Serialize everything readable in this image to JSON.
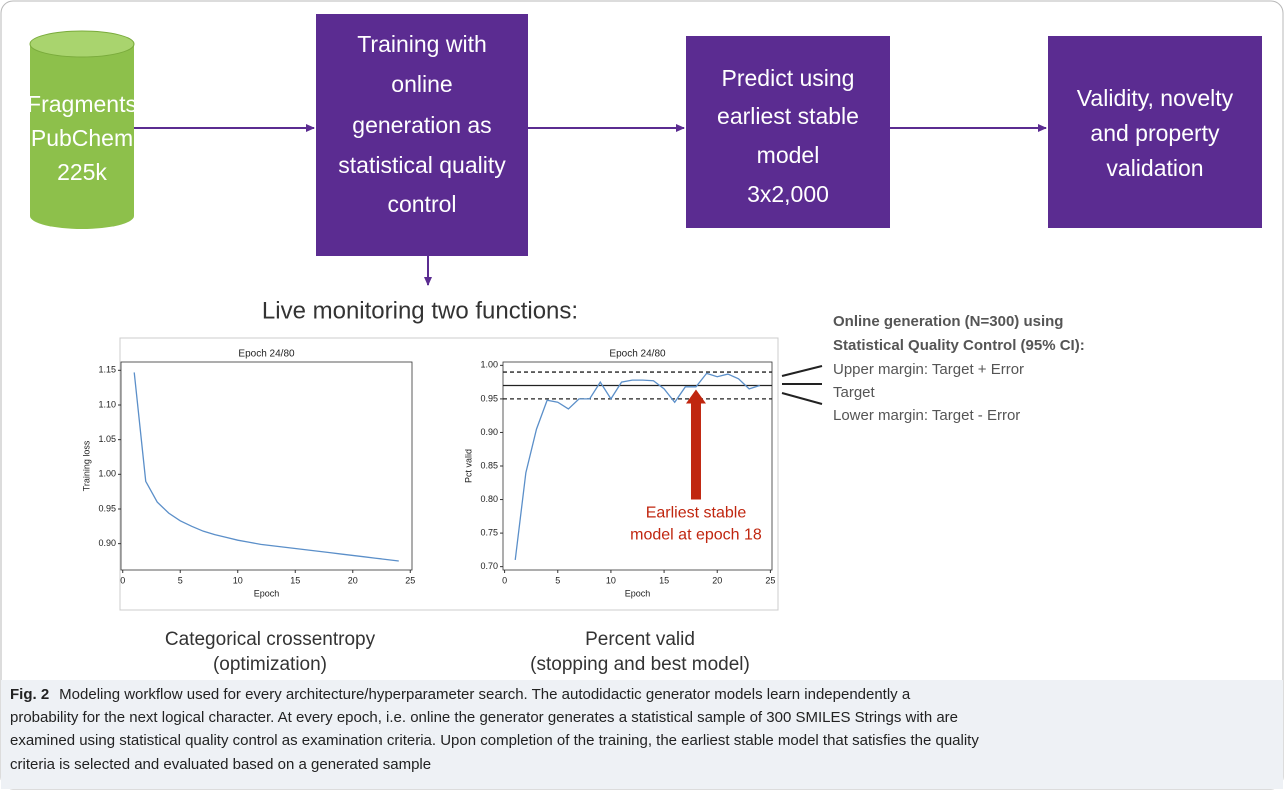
{
  "diagram": {
    "source": {
      "lines": [
        "Fragments",
        "PubChem",
        "225k"
      ]
    },
    "steps": [
      {
        "lines": [
          "Training with",
          "online",
          "generation as",
          "statistical quality",
          "control"
        ]
      },
      {
        "lines": [
          "Predict using",
          "earliest stable",
          "model",
          "3x2,000"
        ]
      },
      {
        "lines": [
          "Validity, novelty",
          "and property",
          "validation"
        ]
      }
    ]
  },
  "monitor_title": "Live monitoring two functions:",
  "chart_captions": [
    {
      "lines": [
        "Categorical crossentropy",
        "(optimization)"
      ]
    },
    {
      "lines": [
        "Percent valid",
        "(stopping and best model)"
      ]
    }
  ],
  "notes": {
    "heading": [
      "Online generation (N=300) using",
      "Statistical Quality Control (95% CI):"
    ],
    "items": [
      "Upper margin: Target + Error",
      "Target",
      "Lower margin: Target - Error"
    ]
  },
  "chart_data": [
    {
      "type": "line",
      "title": "Epoch 24/80",
      "x_label": "Epoch",
      "y_label": "Training loss",
      "x": [
        1,
        2,
        3,
        4,
        5,
        6,
        7,
        8,
        9,
        10,
        11,
        12,
        13,
        14,
        15,
        16,
        17,
        18,
        19,
        20,
        21,
        22,
        23,
        24
      ],
      "series": [
        {
          "color": "#5b8fc9",
          "values": [
            1.147,
            0.99,
            0.96,
            0.944,
            0.933,
            0.925,
            0.918,
            0.913,
            0.909,
            0.905,
            0.902,
            0.899,
            0.897,
            0.895,
            0.893,
            0.891,
            0.889,
            0.887,
            0.885,
            0.883,
            0.881,
            0.879,
            0.877,
            0.875
          ]
        }
      ],
      "xlim": [
        -0.15,
        25.15
      ],
      "xticks": [
        0,
        5,
        10,
        15,
        20,
        25
      ],
      "ylim": [
        0.862,
        1.162
      ],
      "yticks": [
        {
          "value": 0.9,
          "label": "0.90"
        },
        0.95,
        {
          "value": 1.0,
          "label": "1.00"
        },
        1.05,
        {
          "value": 1.1,
          "label": "1.10"
        },
        1.15
      ]
    },
    {
      "type": "line",
      "title": "Epoch 24/80",
      "x_label": "Epoch",
      "y_label": "Pct valid",
      "x": [
        1,
        2,
        3,
        4,
        5,
        6,
        7,
        8,
        9,
        10,
        11,
        12,
        13,
        14,
        15,
        16,
        17,
        18,
        19,
        20,
        21,
        22,
        23,
        24
      ],
      "series": [
        {
          "color": "#5b8fc9",
          "values": [
            0.71,
            0.84,
            0.905,
            0.948,
            0.945,
            0.935,
            0.95,
            0.95,
            0.975,
            0.95,
            0.975,
            0.978,
            0.978,
            0.977,
            0.965,
            0.945,
            0.968,
            0.968,
            0.988,
            0.983,
            0.987,
            0.98,
            0.965,
            0.97
          ]
        }
      ],
      "xlim": [
        -0.15,
        25.15
      ],
      "xticks": [
        0,
        5,
        10,
        15,
        20,
        25
      ],
      "ylim": [
        0.695,
        1.005
      ],
      "yticks": [
        {
          "value": 0.7,
          "label": "0.70"
        },
        0.75,
        {
          "value": 0.8,
          "label": "0.80"
        },
        0.85,
        {
          "value": 0.9,
          "label": "0.90"
        },
        0.95,
        {
          "value": 1.0,
          "label": "1.00"
        }
      ],
      "reference_lines": [
        {
          "value": 0.99,
          "style": "dashed"
        },
        {
          "value": 0.97,
          "style": "solid"
        },
        {
          "value": 0.95,
          "style": "dashed"
        }
      ],
      "annotation": {
        "text": [
          "Earliest stable",
          "model at epoch 18"
        ],
        "x": 18,
        "y": 0.97,
        "color": "#c0260f"
      }
    }
  ],
  "figure_caption": {
    "label": "Fig. 2",
    "lines": [
      "Modeling workflow used for every architecture/hyperparameter search. The autodidactic generator models learn independently a",
      "probability for the next logical character. At every epoch, i.e. online the generator generates a statistical sample of 300 SMILES Strings with are",
      "examined using statistical quality control as examination criteria. Upon completion of the training, the earliest stable model that satisfies the quality",
      "criteria is selected and evaluated based on a generated sample"
    ]
  }
}
